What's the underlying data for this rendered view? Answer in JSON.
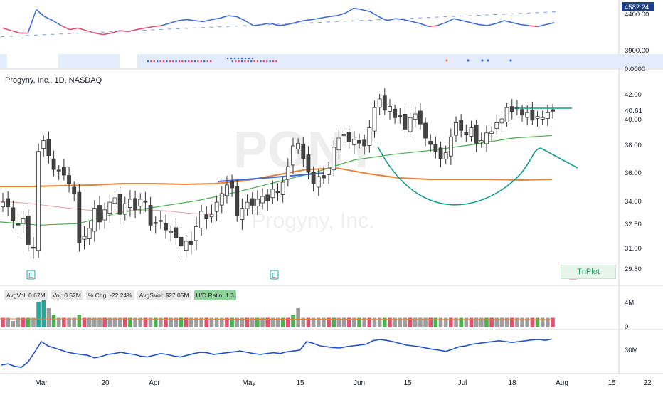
{
  "title": "Progyny, Inc., 1D, NASDAQ",
  "watermark": {
    "ticker": "PGNY",
    "name": "Progyny, Inc."
  },
  "colors": {
    "up": "#26a69a",
    "down": "#555555",
    "ma_orange": "#e8833a",
    "ma_blue": "#3f6bd6",
    "ma_green": "#4caf50",
    "ma_red": "#e05070",
    "rs_line": "#1e50d0",
    "pattern": "#159c8c",
    "price_tag": "#131722"
  },
  "top_panel": {
    "axis_ticks": [
      "4400.00",
      "3900.00",
      "0.0000"
    ],
    "last_tag": "4582.24"
  },
  "price_axis": {
    "ticks": [
      "42.00",
      "40.00",
      "38.00",
      "36.00",
      "34.00",
      "32.50",
      "31.00",
      "29.80"
    ],
    "last_price": "40.61"
  },
  "volume_panel": {
    "legend": [
      {
        "label": "AvgVol: 0.67M"
      },
      {
        "label": "Vol: 0.52M"
      },
      {
        "label": "% Chg: -22.24%"
      },
      {
        "label": "AvgSVol: $27.05M"
      },
      {
        "label": "U/D Ratio: 1.3"
      }
    ],
    "axis_ticks": [
      "4M",
      "0"
    ]
  },
  "rs_panel": {
    "axis_ticks": [
      "30M"
    ]
  },
  "x_axis": {
    "ticks": [
      "Mar",
      "20",
      "Apr",
      "May",
      "15",
      "Jun",
      "15",
      "Jul",
      "18",
      "Aug",
      "15",
      "22"
    ]
  },
  "earnings_markers": [
    "E",
    "E",
    "E"
  ],
  "tplot_label": "TnPlot",
  "chart_data": {
    "type": "candlestick",
    "title": "Progyny, Inc., 1D, NASDAQ",
    "ylim": [
      29.8,
      42.0
    ],
    "candles_close": [
      33.9,
      33.6,
      32.7,
      32.4,
      32.8,
      31.2,
      31.0,
      37.5,
      38.3,
      37.2,
      36.2,
      36.1,
      35.8,
      35.2,
      34.5,
      31.3,
      31.7,
      32.2,
      33.5,
      32.6,
      33.4,
      33.9,
      34.2,
      33.1,
      33.8,
      34.1,
      33.4,
      34.1,
      33.9,
      32.4,
      32.5,
      32.7,
      32.1,
      32.0,
      31.6,
      31.1,
      31.4,
      31.2,
      32.3,
      33.3,
      32.8,
      33.1,
      33.9,
      34.5,
      35.1,
      34.9,
      33.0,
      33.5,
      33.9,
      33.7,
      34.1,
      34.3,
      34.0,
      34.8,
      34.6,
      35.3,
      36.4,
      37.9,
      38.1,
      37.0,
      36.0,
      35.2,
      35.7,
      35.6,
      36.3,
      37.8,
      38.5,
      38.8,
      38.2,
      38.4,
      38.1,
      37.9,
      39.3,
      40.9,
      41.6,
      40.7,
      41.0,
      40.1,
      40.2,
      39.2,
      40.1,
      40.4,
      39.6,
      38.5,
      38.0,
      37.5,
      37.0,
      37.4,
      38.6,
      39.7,
      39.1,
      38.8,
      39.3,
      38.1,
      38.3,
      38.9,
      39.0,
      39.7,
      40.0,
      40.9,
      40.6,
      40.9,
      40.3,
      40.5,
      39.9,
      40.2,
      40.1,
      40.5,
      40.61
    ],
    "moving_averages": [
      {
        "color": "orange",
        "values": [
          35.0,
          35.0,
          35.05,
          35.1,
          35.2,
          35.2,
          35.15,
          35.2,
          35.4,
          35.8,
          36.2,
          36.3,
          35.9,
          35.6,
          35.5,
          35.5,
          35.5,
          35.45,
          35.5
        ]
      },
      {
        "color": "green",
        "values": [
          32.6,
          32.4,
          32.5,
          33.2,
          33.6,
          34.0,
          34.6,
          35.3,
          36.0,
          36.9,
          37.3,
          37.6,
          38.0,
          38.5,
          38.7
        ]
      }
    ],
    "pattern": "cup-with-handle",
    "volume_relative": [
      0.3,
      0.3,
      0.2,
      0.3,
      0.3,
      0.3,
      0.3,
      0.8,
      1.0,
      0.6,
      0.4,
      0.3,
      0.3,
      0.3,
      0.3,
      0.4,
      0.3,
      0.3,
      0.3,
      0.3,
      0.3,
      0.3,
      0.3,
      0.3,
      0.3,
      0.3,
      0.3,
      0.3,
      0.3,
      0.3,
      0.3,
      0.3,
      0.3,
      0.3,
      0.3,
      0.3,
      0.3,
      0.3,
      0.3,
      0.3,
      0.3,
      0.3,
      0.3,
      0.3,
      0.3,
      0.3,
      0.3,
      0.3,
      0.3,
      0.3,
      0.3,
      0.3,
      0.3,
      0.3,
      0.3,
      0.3,
      0.3,
      0.4,
      0.6,
      0.3,
      0.3,
      0.3,
      0.3,
      0.3,
      0.3,
      0.3,
      0.3,
      0.3,
      0.3,
      0.3,
      0.3,
      0.3,
      0.3,
      0.3,
      0.3,
      0.3,
      0.3,
      0.3,
      0.3,
      0.3,
      0.3,
      0.3,
      0.3,
      0.3,
      0.3,
      0.3,
      0.3,
      0.3,
      0.3,
      0.3,
      0.3,
      0.3,
      0.3,
      0.3,
      0.3,
      0.3,
      0.3,
      0.3,
      0.3,
      0.3,
      0.3,
      0.3,
      0.3,
      0.3,
      0.3,
      0.3,
      0.3,
      0.3,
      0.3
    ],
    "rs_line": [
      0.15,
      0.18,
      0.12,
      0.1,
      0.22,
      0.45,
      0.7,
      0.6,
      0.55,
      0.5,
      0.45,
      0.42,
      0.4,
      0.38,
      0.32,
      0.35,
      0.4,
      0.42,
      0.45,
      0.42,
      0.4,
      0.36,
      0.34,
      0.38,
      0.42,
      0.4,
      0.36,
      0.34,
      0.38,
      0.42,
      0.45,
      0.44,
      0.4,
      0.42,
      0.44,
      0.46,
      0.48,
      0.45,
      0.42,
      0.4,
      0.42,
      0.44,
      0.42,
      0.46,
      0.48,
      0.5,
      0.7,
      0.66,
      0.6,
      0.58,
      0.56,
      0.55,
      0.58,
      0.6,
      0.62,
      0.64,
      0.72,
      0.75,
      0.73,
      0.7,
      0.66,
      0.62,
      0.6,
      0.58,
      0.55,
      0.52,
      0.5,
      0.47,
      0.52,
      0.58,
      0.6,
      0.64,
      0.66,
      0.68,
      0.7,
      0.72,
      0.7,
      0.68,
      0.7,
      0.72,
      0.74,
      0.75,
      0.73,
      0.76
    ],
    "top_line": [
      0.55,
      0.5,
      0.45,
      0.45,
      0.92,
      0.78,
      0.7,
      0.6,
      0.52,
      0.55,
      0.5,
      0.45,
      0.42,
      0.45,
      0.5,
      0.48,
      0.52,
      0.55,
      0.58,
      0.6,
      0.65,
      0.7,
      0.72,
      0.7,
      0.68,
      0.72,
      0.75,
      0.8,
      0.78,
      0.7,
      0.6,
      0.62,
      0.65,
      0.6,
      0.62,
      0.66,
      0.7,
      0.72,
      0.75,
      0.78,
      0.8,
      0.85,
      0.95,
      0.92,
      0.88,
      0.78,
      0.7,
      0.74,
      0.72,
      0.68,
      0.64,
      0.58,
      0.6,
      0.66,
      0.74,
      0.7,
      0.66,
      0.62,
      0.6,
      0.64,
      0.7,
      0.66,
      0.62,
      0.6,
      0.58,
      0.62,
      0.66
    ]
  }
}
